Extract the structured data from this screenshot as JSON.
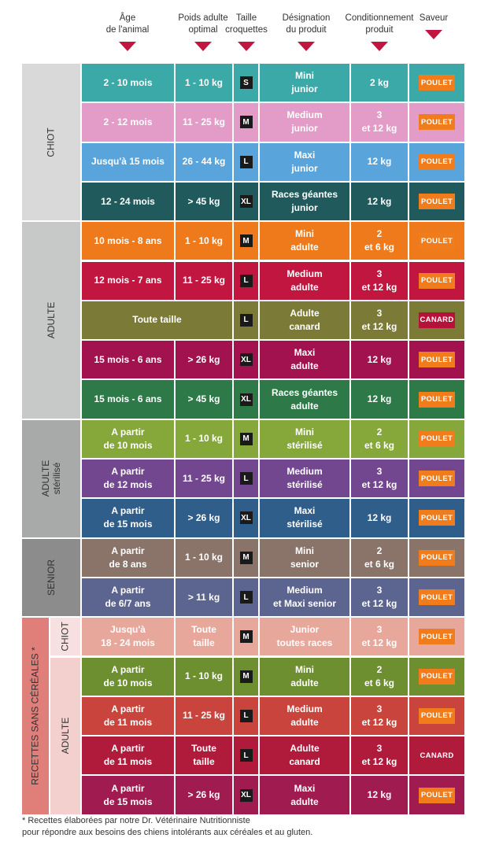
{
  "headers": [
    {
      "id": "age",
      "label": "Âge\nde l'animal"
    },
    {
      "id": "poids",
      "label": "Poids adulte\noptimal"
    },
    {
      "id": "taille",
      "label": "Taille\ncroquettes"
    },
    {
      "id": "designation",
      "label": "Désignation\ndu produit"
    },
    {
      "id": "conditionnement",
      "label": "Conditionnement\nproduit"
    },
    {
      "id": "saveur",
      "label": "Saveur"
    }
  ],
  "groups": [
    {
      "label": "CHIOT",
      "color": "#d9d9d9"
    },
    {
      "label": "ADULTE",
      "color": "#c7c8c8"
    },
    {
      "label": "ADULTE\nstérilisé",
      "color": "#a8a9a9"
    },
    {
      "label": "SENIOR",
      "color": "#8c8c8c"
    },
    {
      "label": "RECETTES SANS CÉRÉALES *",
      "color": "#e07e79"
    }
  ],
  "subgroups": [
    {
      "label": "CHIOT",
      "color": "#f7e1e0"
    },
    {
      "label": "ADULTE",
      "color": "#f3d0ce"
    }
  ],
  "rows": [
    {
      "age": "2 - 10 mois",
      "poids": "1 - 10 kg",
      "taille": "S",
      "designation": "Mini\njunior",
      "conditionnement": "2 kg",
      "saveur": "POULET",
      "color": "#3aa9a8",
      "flavor_color": "#f07c1b"
    },
    {
      "age": "2 - 12 mois",
      "poids": "11 - 25 kg",
      "taille": "M",
      "designation": "Medium\njunior",
      "conditionnement": "3\net 12 kg",
      "saveur": "POULET",
      "color": "#e39bc8",
      "flavor_color": "#f07c1b"
    },
    {
      "age": "Jusqu'à 15 mois",
      "poids": "26 - 44 kg",
      "taille": "L",
      "designation": "Maxi\njunior",
      "conditionnement": "12 kg",
      "saveur": "POULET",
      "color": "#5aa4dc",
      "flavor_color": "#f07c1b"
    },
    {
      "age": "12 - 24 mois",
      "poids": "> 45 kg",
      "taille": "XL",
      "designation": "Races géantes\njunior",
      "conditionnement": "12 kg",
      "saveur": "POULET",
      "color": "#215a5c",
      "flavor_color": "#f07c1b"
    },
    {
      "age": "10 mois - 8 ans",
      "poids": "1 - 10 kg",
      "taille": "M",
      "designation": "Mini\nadulte",
      "conditionnement": "2\net 6 kg",
      "saveur": "POULET",
      "color": "#ef7a1c",
      "flavor_color": "#f07c1b"
    },
    {
      "age": "12 mois - 7 ans",
      "poids": "11 - 25 kg",
      "taille": "L",
      "designation": "Medium\nadulte",
      "conditionnement": "3\net 12 kg",
      "saveur": "POULET",
      "color": "#c0163f",
      "flavor_color": "#f07c1b"
    },
    {
      "age": "Toute taille",
      "poids": "",
      "taille": "L",
      "designation": "Adulte\ncanard",
      "conditionnement": "3\net 12 kg",
      "saveur": "CANARD",
      "color": "#7b7a36",
      "flavor_color": "#b5123a"
    },
    {
      "age": "15 mois - 6 ans",
      "poids": "> 26 kg",
      "taille": "XL",
      "designation": "Maxi\nadulte",
      "conditionnement": "12 kg",
      "saveur": "POULET",
      "color": "#a2124f",
      "flavor_color": "#f07c1b"
    },
    {
      "age": "15 mois - 6 ans",
      "poids": "> 45 kg",
      "taille": "XL",
      "designation": "Races géantes\nadulte",
      "conditionnement": "12 kg",
      "saveur": "POULET",
      "color": "#2d7a48",
      "flavor_color": "#f07c1b"
    },
    {
      "age": "A partir\nde 10 mois",
      "poids": "1 - 10 kg",
      "taille": "M",
      "designation": "Mini\nstérilisé",
      "conditionnement": "2\net 6 kg",
      "saveur": "POULET",
      "color": "#86a83a",
      "flavor_color": "#f07c1b"
    },
    {
      "age": "A partir\nde 12 mois",
      "poids": "11 - 25 kg",
      "taille": "L",
      "designation": "Medium\nstérilisé",
      "conditionnement": "3\net 12 kg",
      "saveur": "POULET",
      "color": "#73478f",
      "flavor_color": "#f07c1b"
    },
    {
      "age": "A partir\nde 15 mois",
      "poids": "> 26 kg",
      "taille": "XL",
      "designation": "Maxi\nstérilisé",
      "conditionnement": "12 kg",
      "saveur": "POULET",
      "color": "#2f5e8a",
      "flavor_color": "#f07c1b"
    },
    {
      "age": "A partir\nde 8 ans",
      "poids": "1 - 10 kg",
      "taille": "M",
      "designation": "Mini\nsenior",
      "conditionnement": "2\net 6 kg",
      "saveur": "POULET",
      "color": "#8a7369",
      "flavor_color": "#f07c1b"
    },
    {
      "age": "A partir\nde 6/7 ans",
      "poids": "> 11 kg",
      "taille": "L",
      "designation": "Medium\net Maxi senior",
      "conditionnement": "3\net 12 kg",
      "saveur": "POULET",
      "color": "#5c6490",
      "flavor_color": "#f07c1b"
    },
    {
      "age": "Jusqu'à\n18 - 24 mois",
      "poids": "Toute\ntaille",
      "taille": "M",
      "designation": "Junior\ntoutes races",
      "conditionnement": "3\net 12 kg",
      "saveur": "POULET",
      "color": "#e7a79a",
      "flavor_color": "#f07c1b"
    },
    {
      "age": "A partir\nde 10 mois",
      "poids": "1 - 10 kg",
      "taille": "M",
      "designation": "Mini\nadulte",
      "conditionnement": "2\net 6 kg",
      "saveur": "POULET",
      "color": "#6e8f2f",
      "flavor_color": "#f07c1b"
    },
    {
      "age": "A partir\nde 11 mois",
      "poids": "11 - 25 kg",
      "taille": "L",
      "designation": "Medium\nadulte",
      "conditionnement": "3\net 12 kg",
      "saveur": "POULET",
      "color": "#c9443c",
      "flavor_color": "#f07c1b"
    },
    {
      "age": "A partir\nde 11 mois",
      "poids": "Toute\ntaille",
      "taille": "L",
      "designation": "Adulte\ncanard",
      "conditionnement": "3\net 12 kg",
      "saveur": "CANARD",
      "color": "#b01b3b",
      "flavor_color": "#b01b3b"
    },
    {
      "age": "A partir\nde 15 mois",
      "poids": "> 26 kg",
      "taille": "XL",
      "designation": "Maxi\nadulte",
      "conditionnement": "12 kg",
      "saveur": "POULET",
      "color": "#9f1b50",
      "flavor_color": "#f07c1b"
    }
  ],
  "footnote": "* Recettes élaborées par notre Dr. Vétérinaire Nutritionniste\n  pour répondre aux besoins des chiens intolérants aux céréales et au gluten."
}
